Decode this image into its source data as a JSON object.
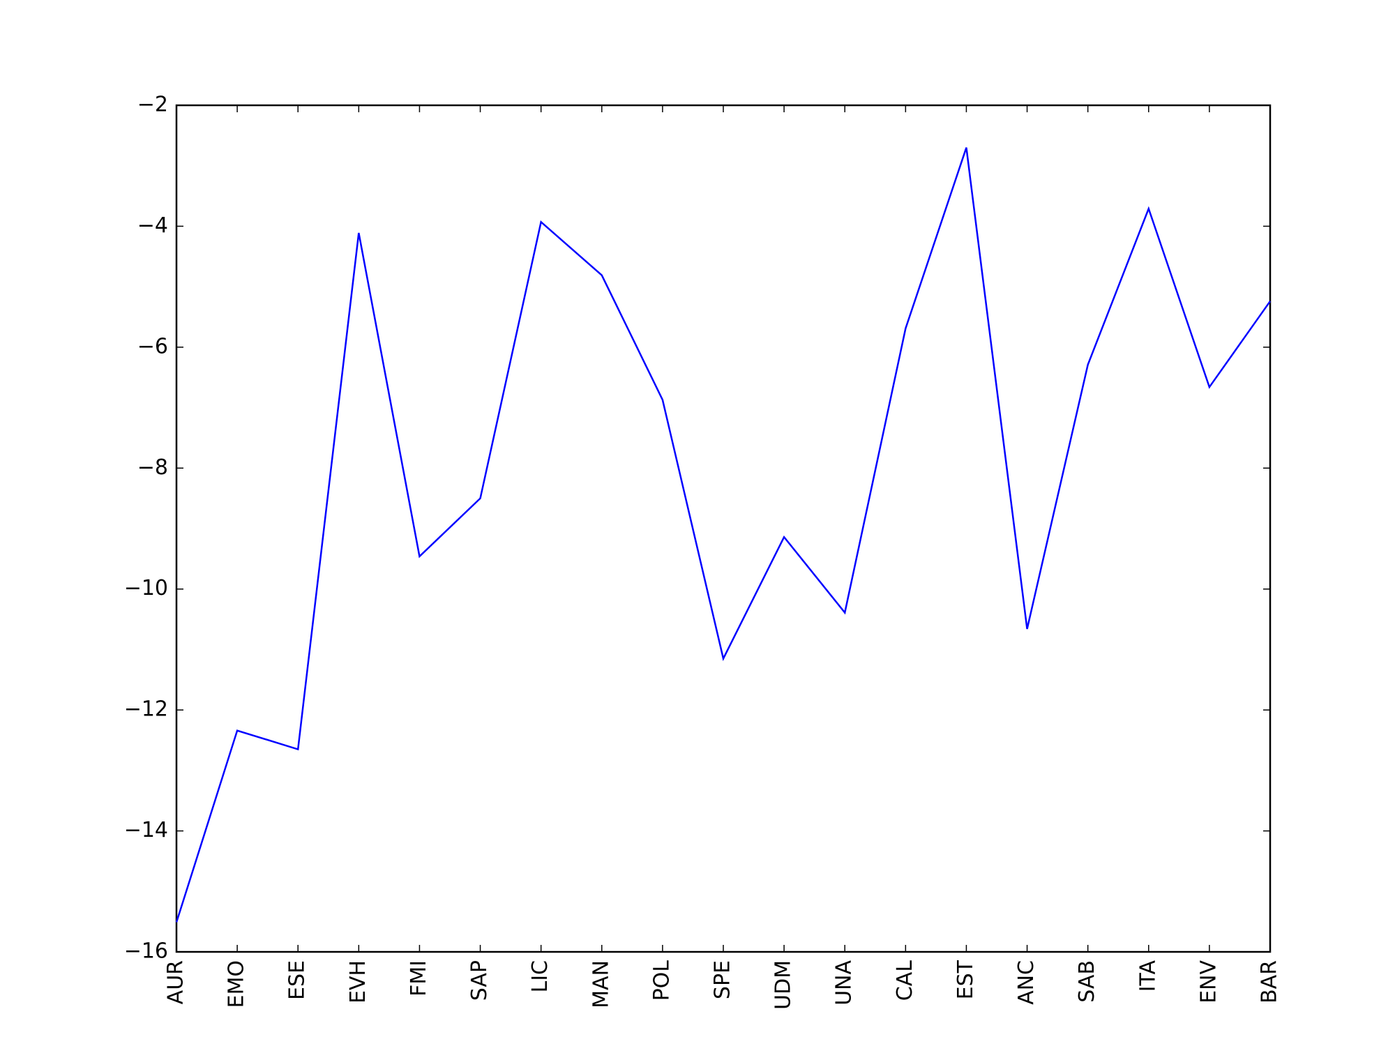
{
  "chart_data": {
    "type": "line",
    "categories": [
      "AUR",
      "EMO",
      "ESE",
      "EVH",
      "FMI",
      "SAP",
      "LIC",
      "MAN",
      "POL",
      "SPE",
      "UDM",
      "UNA",
      "CAL",
      "EST",
      "ANC",
      "SAB",
      "ITA",
      "ENV",
      "BAR"
    ],
    "series": [
      {
        "color": "#0000ff",
        "values": [
          -15.51,
          -12.34,
          -12.65,
          -4.11,
          -9.46,
          -8.5,
          -3.93,
          -4.81,
          -6.87,
          -11.15,
          -9.14,
          -10.39,
          -5.69,
          -2.7,
          -10.66,
          -6.29,
          -3.71,
          -6.66,
          -5.24
        ]
      }
    ],
    "ylim": [
      -16,
      -2
    ],
    "yticks": [
      {
        "value": -16,
        "label": "−16"
      },
      {
        "value": -14,
        "label": "−14"
      },
      {
        "value": -12,
        "label": "−12"
      },
      {
        "value": -10,
        "label": "−10"
      },
      {
        "value": -8,
        "label": "−8"
      },
      {
        "value": -6,
        "label": "−6"
      },
      {
        "value": -4,
        "label": "−4"
      },
      {
        "value": -2,
        "label": "−2"
      }
    ],
    "grid": false
  }
}
